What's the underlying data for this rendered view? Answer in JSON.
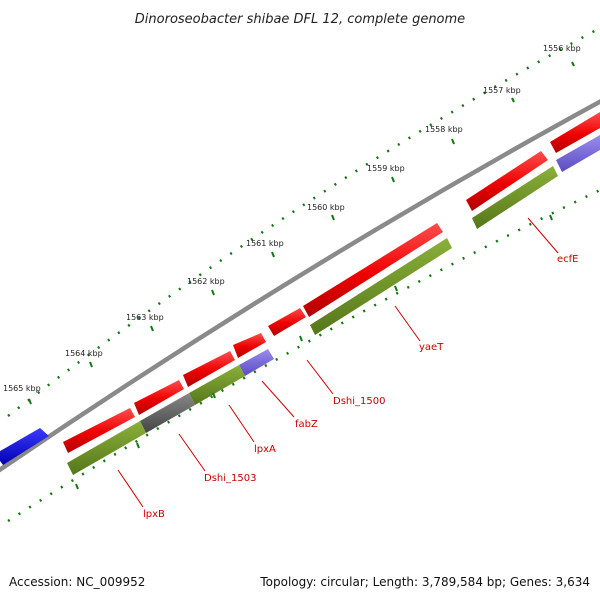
{
  "title": "Dinoroseobacter shibae DFL 12, complete genome",
  "footer": {
    "accession": "Accession: NC_009952",
    "meta": "Topology: circular; Length: 3,789,584 bp; Genes: 3,634"
  },
  "colors": {
    "background": "#ffffff",
    "backbone": "#808080",
    "cds_forward": "#ff0000",
    "gene_bar": "#6b8e23",
    "gene_bar_alt1": "#6a5acd",
    "gene_bar_alt2": "#555555",
    "other_feature": "#0000ee",
    "tick": "#117711",
    "label": "#cc0000"
  },
  "scale_labels": [
    "1556 kbp",
    "1557 kbp",
    "1558 kbp",
    "1559 kbp",
    "1560 kbp",
    "1561 kbp",
    "1562 kbp",
    "1563 kbp",
    "1564 kbp",
    "1565 kbp"
  ],
  "gene_labels": [
    "ecfE",
    "yaeT",
    "Dshi_1500",
    "fabZ",
    "lpxA",
    "Dshi_1503",
    "lpxB"
  ]
}
